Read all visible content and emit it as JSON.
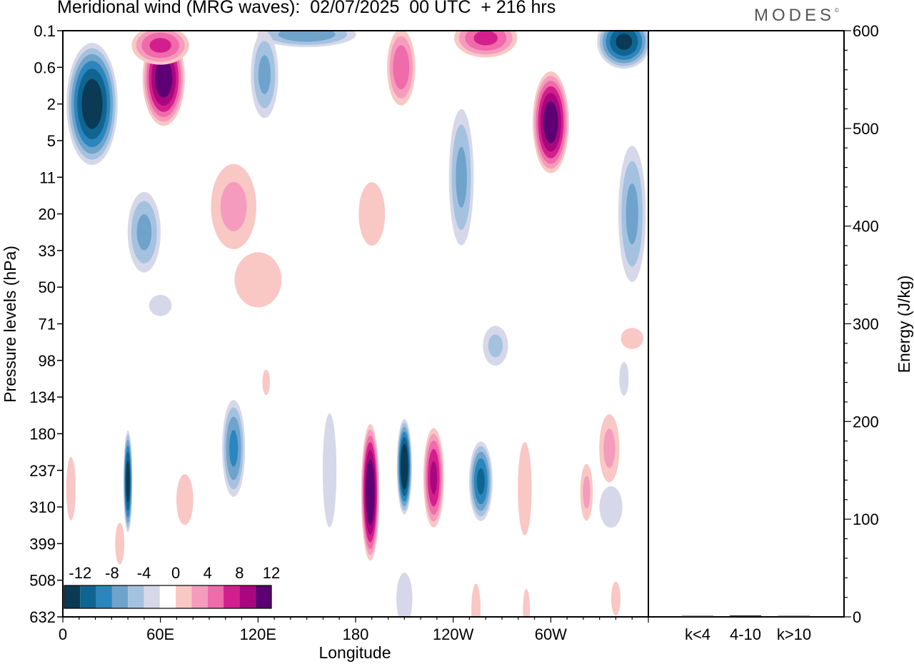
{
  "title": "Meridional wind (MRG waves):  02/07/2025  00 UTC  + 216 hrs",
  "brand": "MODES",
  "brand_mark": "©",
  "colors": {
    "neg": [
      "#0b3a55",
      "#0f6491",
      "#2a86bd",
      "#6fa3cc",
      "#a4c2df",
      "#d6d8e9"
    ],
    "pos": [
      "#f9c7c4",
      "#f59bbd",
      "#ef6ba9",
      "#d31f8d",
      "#a9067f",
      "#5c0074"
    ]
  },
  "chart_data": [
    {
      "type": "heatmap",
      "title": "Meridional wind (MRG waves):  02/07/2025  00 UTC  + 216 hrs",
      "xlabel": "Longitude",
      "ylabel": "Pressure levels (hPa)",
      "x_ticks": [
        "0",
        "60E",
        "120E",
        "180",
        "120W",
        "60W"
      ],
      "x_tick_values": [
        0,
        60,
        120,
        180,
        240,
        300
      ],
      "xlim": [
        0,
        360
      ],
      "y_ticks": [
        "0.1",
        "0.6",
        "2",
        "5",
        "11",
        "20",
        "33",
        "50",
        "71",
        "98",
        "134",
        "180",
        "237",
        "310",
        "399",
        "508",
        "632"
      ],
      "colorbar": {
        "labels": [
          "-12",
          "-8",
          "-4",
          "0",
          "4",
          "8",
          "12"
        ],
        "levels": [
          -14,
          -12,
          -10,
          -8,
          -6,
          -4,
          -2,
          2,
          4,
          6,
          8,
          10,
          12,
          14
        ]
      },
      "features": [
        {
          "lon": 18,
          "level": 2.0,
          "value": -14,
          "lon_width": 17,
          "level_width": 1.8
        },
        {
          "lon": 62,
          "level": 1.3,
          "value": 14,
          "lon_width": 14,
          "level_width": 1.4
        },
        {
          "lon": 60,
          "level": 0.4,
          "value": 9,
          "lon_width": 20,
          "level_width": 0.6
        },
        {
          "lon": 345,
          "level": 0.3,
          "value": -13,
          "lon_width": 18,
          "level_width": 0.8
        },
        {
          "lon": 150,
          "level": 0.1,
          "value": -8,
          "lon_width": 35,
          "level_width": 0.4
        },
        {
          "lon": 260,
          "level": 0.2,
          "value": 9,
          "lon_width": 22,
          "level_width": 0.6
        },
        {
          "lon": 124,
          "level": 1.2,
          "value": -7,
          "lon_width": 10,
          "level_width": 1.4
        },
        {
          "lon": 208,
          "level": 1.0,
          "value": 8,
          "lon_width": 10,
          "level_width": 1.2
        },
        {
          "lon": 300,
          "level": 2.5,
          "value": 14,
          "lon_width": 12,
          "level_width": 1.5
        },
        {
          "lon": 245,
          "level": 4.0,
          "value": -7,
          "lon_width": 9,
          "level_width": 2.2
        },
        {
          "lon": 350,
          "level": 5.0,
          "value": -7,
          "lon_width": 10,
          "level_width": 2.2
        },
        {
          "lon": 50,
          "level": 5.5,
          "value": -7,
          "lon_width": 12,
          "level_width": 1.3
        },
        {
          "lon": 105,
          "level": 4.8,
          "value": 5,
          "lon_width": 18,
          "level_width": 1.5
        },
        {
          "lon": 120,
          "level": 6.8,
          "value": 3,
          "lon_width": 25,
          "level_width": 1.3
        },
        {
          "lon": 190,
          "level": 5.0,
          "value": 3,
          "lon_width": 14,
          "level_width": 1.5
        },
        {
          "lon": 60,
          "level": 7.5,
          "value": -3,
          "lon_width": 12,
          "level_width": 0.5
        },
        {
          "lon": 40,
          "level": 12.3,
          "value": -14,
          "lon_width": 3,
          "level_width": 1.5
        },
        {
          "lon": 105,
          "level": 11.4,
          "value": -9,
          "lon_width": 8,
          "level_width": 1.5
        },
        {
          "lon": 164,
          "level": 12.0,
          "value": -4,
          "lon_width": 6,
          "level_width": 2.2
        },
        {
          "lon": 189,
          "level": 12.6,
          "value": 15,
          "lon_width": 6,
          "level_width": 2.0
        },
        {
          "lon": 210,
          "level": 11.9,
          "value": -15,
          "lon_width": 5,
          "level_width": 1.4
        },
        {
          "lon": 228,
          "level": 12.2,
          "value": 11,
          "lon_width": 7,
          "level_width": 1.5
        },
        {
          "lon": 257,
          "level": 12.3,
          "value": -11,
          "lon_width": 8,
          "level_width": 1.2
        },
        {
          "lon": 284,
          "level": 12.5,
          "value": 4,
          "lon_width": 6,
          "level_width": 1.8
        },
        {
          "lon": 336,
          "level": 11.4,
          "value": 5,
          "lon_width": 8,
          "level_width": 1.2
        },
        {
          "lon": 322,
          "level": 12.6,
          "value": 5,
          "lon_width": 5,
          "level_width": 1.0
        },
        {
          "lon": 337,
          "level": 13.0,
          "value": -4,
          "lon_width": 10,
          "level_width": 0.8
        },
        {
          "lon": 35,
          "level": 14.0,
          "value": 4,
          "lon_width": 4,
          "level_width": 0.8
        },
        {
          "lon": 75,
          "level": 12.8,
          "value": 3,
          "lon_width": 9,
          "level_width": 1.2
        },
        {
          "lon": 5,
          "level": 12.5,
          "value": 3,
          "lon_width": 5,
          "level_width": 1.5
        },
        {
          "lon": 210,
          "level": 15.5,
          "value": -4,
          "lon_width": 7,
          "level_width": 1.0
        },
        {
          "lon": 254,
          "level": 15.8,
          "value": 4,
          "lon_width": 4,
          "level_width": 1.0
        },
        {
          "lon": 340,
          "level": 15.5,
          "value": 3,
          "lon_width": 5,
          "level_width": 0.8
        },
        {
          "lon": 285,
          "level": 15.8,
          "value": 4,
          "lon_width": 3,
          "level_width": 0.8
        },
        {
          "lon": 266,
          "level": 8.6,
          "value": -5,
          "lon_width": 10,
          "level_width": 0.7
        },
        {
          "lon": 350,
          "level": 8.4,
          "value": 3,
          "lon_width": 12,
          "level_width": 0.5
        },
        {
          "lon": 345,
          "level": 9.5,
          "value": -3,
          "lon_width": 5,
          "level_width": 0.8
        },
        {
          "lon": 125,
          "level": 9.6,
          "value": 3,
          "lon_width": 4,
          "level_width": 0.6
        }
      ]
    },
    {
      "type": "bar",
      "categories": [
        "k<4",
        "4-10",
        "k>10"
      ],
      "values": [
        0.4,
        1.5,
        0.2
      ],
      "ylabel": "Energy (J/kg)",
      "ylim": [
        0,
        600
      ],
      "y_ticks": [
        "0",
        "100",
        "200",
        "300",
        "400",
        "500",
        "600"
      ]
    }
  ]
}
